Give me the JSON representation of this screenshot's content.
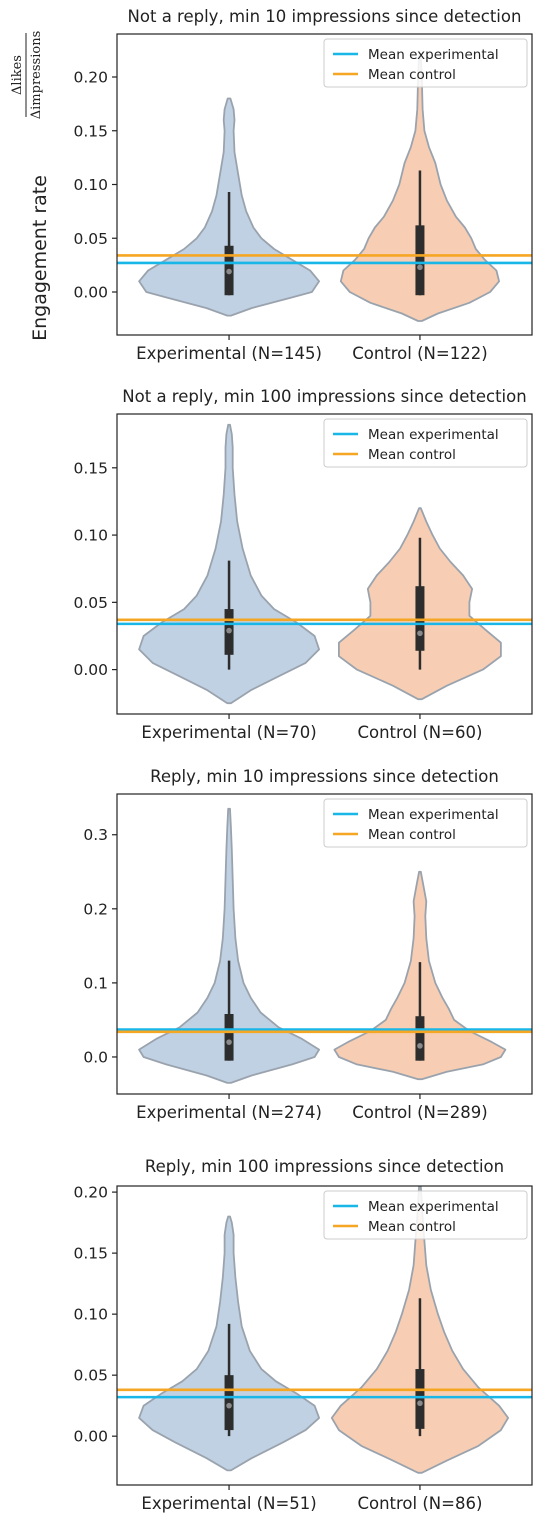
{
  "y_axis_label": "Engagement rate",
  "y_axis_fraction": {
    "numerator": "Δlikes",
    "denominator": "Δimpressions"
  },
  "colors": {
    "experimental_fill": "#a9c1d9",
    "control_fill": "#f4be9a",
    "violin_edge": "#9aa3ad",
    "box": "#2d2d2d",
    "median": "#8a8a8a",
    "mean_experimental": "#19b6e8",
    "mean_control": "#f5a623"
  },
  "chart_data": [
    {
      "type": "violin",
      "title": "Not a reply, min 10 impressions since detection",
      "categories": [
        "Experimental (N=145)",
        "Control (N=122)"
      ],
      "legend": [
        "Mean experimental",
        "Mean control"
      ],
      "legend_position": "top-right",
      "ylim": [
        -0.04,
        0.24
      ],
      "yticks": [
        0.0,
        0.05,
        0.1,
        0.15,
        0.2
      ],
      "ytick_labels": [
        "0.00",
        "0.05",
        "0.10",
        "0.15",
        "0.20"
      ],
      "mean_experimental": 0.027,
      "mean_control": 0.034,
      "series": [
        {
          "name": "Experimental",
          "min": -0.022,
          "max": 0.18,
          "q1": -0.003,
          "q3": 0.043,
          "whisker_low": -0.003,
          "whisker_high": 0.093,
          "median": 0.019,
          "profile": [
            [
              -0.022,
              0.02
            ],
            [
              -0.015,
              0.25
            ],
            [
              -0.005,
              0.7
            ],
            [
              0.0,
              0.92
            ],
            [
              0.01,
              1.0
            ],
            [
              0.02,
              0.9
            ],
            [
              0.03,
              0.7
            ],
            [
              0.04,
              0.5
            ],
            [
              0.05,
              0.36
            ],
            [
              0.06,
              0.27
            ],
            [
              0.075,
              0.19
            ],
            [
              0.09,
              0.14
            ],
            [
              0.11,
              0.1
            ],
            [
              0.13,
              0.06
            ],
            [
              0.15,
              0.05
            ],
            [
              0.16,
              0.06
            ],
            [
              0.17,
              0.05
            ],
            [
              0.18,
              0.015
            ]
          ]
        },
        {
          "name": "Control",
          "min": -0.027,
          "max": 0.22,
          "q1": -0.003,
          "q3": 0.062,
          "whisker_low": -0.003,
          "whisker_high": 0.113,
          "median": 0.023,
          "profile": [
            [
              -0.027,
              0.02
            ],
            [
              -0.02,
              0.2
            ],
            [
              -0.01,
              0.55
            ],
            [
              0.0,
              0.78
            ],
            [
              0.01,
              0.88
            ],
            [
              0.02,
              0.85
            ],
            [
              0.03,
              0.72
            ],
            [
              0.04,
              0.62
            ],
            [
              0.05,
              0.57
            ],
            [
              0.06,
              0.5
            ],
            [
              0.07,
              0.4
            ],
            [
              0.085,
              0.3
            ],
            [
              0.1,
              0.23
            ],
            [
              0.12,
              0.17
            ],
            [
              0.135,
              0.1
            ],
            [
              0.15,
              0.05
            ],
            [
              0.17,
              0.03
            ],
            [
              0.2,
              0.02
            ],
            [
              0.22,
              0.01
            ]
          ]
        }
      ]
    },
    {
      "type": "violin",
      "title": "Not a reply, min 100 impressions since detection",
      "categories": [
        "Experimental (N=70)",
        "Control (N=60)"
      ],
      "legend": [
        "Mean experimental",
        "Mean control"
      ],
      "legend_position": "top-right",
      "ylim": [
        -0.033,
        0.19
      ],
      "yticks": [
        0.0,
        0.05,
        0.1,
        0.15
      ],
      "ytick_labels": [
        "0.00",
        "0.05",
        "0.10",
        "0.15"
      ],
      "mean_experimental": 0.034,
      "mean_control": 0.037,
      "series": [
        {
          "name": "Experimental",
          "min": -0.025,
          "max": 0.182,
          "q1": 0.011,
          "q3": 0.045,
          "whisker_low": 0.0,
          "whisker_high": 0.081,
          "median": 0.029,
          "profile": [
            [
              -0.025,
              0.02
            ],
            [
              -0.015,
              0.25
            ],
            [
              -0.005,
              0.55
            ],
            [
              0.005,
              0.85
            ],
            [
              0.015,
              1.0
            ],
            [
              0.025,
              0.95
            ],
            [
              0.035,
              0.75
            ],
            [
              0.045,
              0.5
            ],
            [
              0.055,
              0.36
            ],
            [
              0.07,
              0.24
            ],
            [
              0.09,
              0.15
            ],
            [
              0.11,
              0.09
            ],
            [
              0.13,
              0.06
            ],
            [
              0.15,
              0.04
            ],
            [
              0.165,
              0.04
            ],
            [
              0.175,
              0.03
            ],
            [
              0.182,
              0.01
            ]
          ]
        },
        {
          "name": "Control",
          "min": -0.022,
          "max": 0.12,
          "q1": 0.014,
          "q3": 0.062,
          "whisker_low": 0.0,
          "whisker_high": 0.098,
          "median": 0.027,
          "profile": [
            [
              -0.022,
              0.02
            ],
            [
              -0.012,
              0.3
            ],
            [
              0.0,
              0.7
            ],
            [
              0.01,
              0.9
            ],
            [
              0.02,
              0.9
            ],
            [
              0.03,
              0.72
            ],
            [
              0.04,
              0.55
            ],
            [
              0.05,
              0.55
            ],
            [
              0.06,
              0.58
            ],
            [
              0.07,
              0.48
            ],
            [
              0.08,
              0.34
            ],
            [
              0.09,
              0.22
            ],
            [
              0.1,
              0.14
            ],
            [
              0.11,
              0.07
            ],
            [
              0.12,
              0.01
            ]
          ]
        }
      ]
    },
    {
      "type": "violin",
      "title": "Reply, min 10 impressions since detection",
      "categories": [
        "Experimental (N=274)",
        "Control (N=289)"
      ],
      "legend": [
        "Mean experimental",
        "Mean control"
      ],
      "legend_position": "top-right",
      "ylim": [
        -0.05,
        0.355
      ],
      "yticks": [
        0.0,
        0.1,
        0.2,
        0.3
      ],
      "ytick_labels": [
        "0.0",
        "0.1",
        "0.2",
        "0.3"
      ],
      "mean_experimental": 0.037,
      "mean_control": 0.034,
      "series": [
        {
          "name": "Experimental",
          "min": -0.035,
          "max": 0.335,
          "q1": -0.005,
          "q3": 0.058,
          "whisker_low": -0.005,
          "whisker_high": 0.13,
          "median": 0.02,
          "profile": [
            [
              -0.035,
              0.02
            ],
            [
              -0.025,
              0.25
            ],
            [
              -0.01,
              0.7
            ],
            [
              0.0,
              0.95
            ],
            [
              0.01,
              1.0
            ],
            [
              0.025,
              0.8
            ],
            [
              0.04,
              0.55
            ],
            [
              0.06,
              0.35
            ],
            [
              0.08,
              0.24
            ],
            [
              0.1,
              0.16
            ],
            [
              0.13,
              0.1
            ],
            [
              0.16,
              0.07
            ],
            [
              0.2,
              0.05
            ],
            [
              0.24,
              0.04
            ],
            [
              0.28,
              0.03
            ],
            [
              0.31,
              0.02
            ],
            [
              0.335,
              0.01
            ]
          ]
        },
        {
          "name": "Control",
          "min": -0.03,
          "max": 0.25,
          "q1": -0.005,
          "q3": 0.055,
          "whisker_low": -0.005,
          "whisker_high": 0.128,
          "median": 0.015,
          "profile": [
            [
              -0.03,
              0.02
            ],
            [
              -0.02,
              0.3
            ],
            [
              -0.01,
              0.7
            ],
            [
              0.0,
              0.9
            ],
            [
              0.01,
              0.95
            ],
            [
              0.02,
              0.8
            ],
            [
              0.035,
              0.55
            ],
            [
              0.05,
              0.38
            ],
            [
              0.065,
              0.32
            ],
            [
              0.08,
              0.25
            ],
            [
              0.1,
              0.17
            ],
            [
              0.13,
              0.1
            ],
            [
              0.16,
              0.07
            ],
            [
              0.19,
              0.06
            ],
            [
              0.21,
              0.07
            ],
            [
              0.23,
              0.04
            ],
            [
              0.25,
              0.01
            ]
          ]
        }
      ]
    },
    {
      "type": "violin",
      "title": "Reply, min 100 impressions since detection",
      "categories": [
        "Experimental (N=51)",
        "Control (N=86)"
      ],
      "legend": [
        "Mean experimental",
        "Mean control"
      ],
      "legend_position": "top-right",
      "ylim": [
        -0.04,
        0.205
      ],
      "yticks": [
        0.0,
        0.05,
        0.1,
        0.15,
        0.2
      ],
      "ytick_labels": [
        "0.00",
        "0.05",
        "0.10",
        "0.15",
        "0.20"
      ],
      "mean_experimental": 0.032,
      "mean_control": 0.038,
      "series": [
        {
          "name": "Experimental",
          "min": -0.028,
          "max": 0.18,
          "q1": 0.005,
          "q3": 0.05,
          "whisker_low": 0.0,
          "whisker_high": 0.092,
          "median": 0.025,
          "profile": [
            [
              -0.028,
              0.02
            ],
            [
              -0.018,
              0.25
            ],
            [
              -0.005,
              0.6
            ],
            [
              0.005,
              0.85
            ],
            [
              0.015,
              1.0
            ],
            [
              0.025,
              0.95
            ],
            [
              0.035,
              0.75
            ],
            [
              0.045,
              0.52
            ],
            [
              0.055,
              0.36
            ],
            [
              0.07,
              0.23
            ],
            [
              0.09,
              0.14
            ],
            [
              0.11,
              0.1
            ],
            [
              0.13,
              0.07
            ],
            [
              0.15,
              0.05
            ],
            [
              0.165,
              0.05
            ],
            [
              0.175,
              0.03
            ],
            [
              0.18,
              0.01
            ]
          ]
        },
        {
          "name": "Control",
          "min": -0.03,
          "max": 0.205,
          "q1": 0.006,
          "q3": 0.055,
          "whisker_low": 0.0,
          "whisker_high": 0.113,
          "median": 0.027,
          "profile": [
            [
              -0.03,
              0.02
            ],
            [
              -0.02,
              0.3
            ],
            [
              -0.008,
              0.65
            ],
            [
              0.005,
              0.9
            ],
            [
              0.015,
              0.98
            ],
            [
              0.025,
              0.88
            ],
            [
              0.04,
              0.65
            ],
            [
              0.055,
              0.48
            ],
            [
              0.07,
              0.36
            ],
            [
              0.085,
              0.27
            ],
            [
              0.1,
              0.2
            ],
            [
              0.12,
              0.12
            ],
            [
              0.14,
              0.07
            ],
            [
              0.16,
              0.05
            ],
            [
              0.18,
              0.03
            ],
            [
              0.205,
              0.01
            ]
          ]
        }
      ]
    }
  ]
}
